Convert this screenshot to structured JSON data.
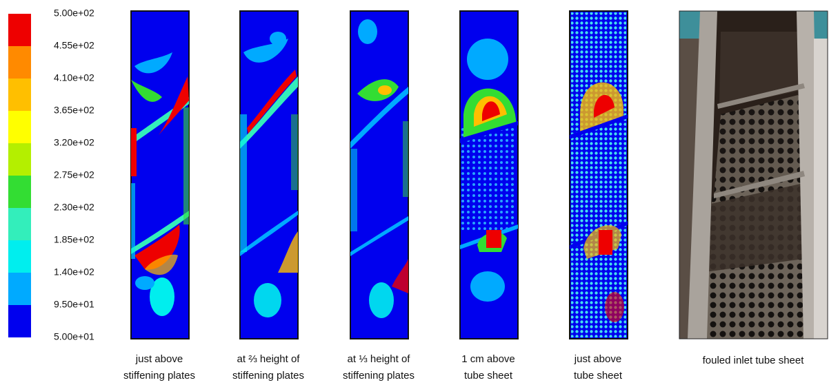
{
  "colorbar": {
    "labels": [
      "5.00e+02",
      "4.55e+02",
      "4.10e+02",
      "3.65e+02",
      "3.20e+02",
      "2.75e+02",
      "2.30e+02",
      "1.85e+02",
      "1.40e+02",
      "9.50e+01",
      "5.00e+01"
    ]
  },
  "panels": [
    {
      "caption": [
        "just above",
        "stiffening plates"
      ]
    },
    {
      "caption": [
        "at ⅔ height of",
        "stiffening plates"
      ]
    },
    {
      "caption": [
        "at ⅓ height of",
        "stiffening plates"
      ]
    },
    {
      "caption": [
        "1 cm above",
        "tube sheet"
      ]
    },
    {
      "caption": [
        "just above",
        "tube sheet"
      ]
    },
    {
      "caption": [
        "fouled inlet tube sheet"
      ]
    }
  ]
}
